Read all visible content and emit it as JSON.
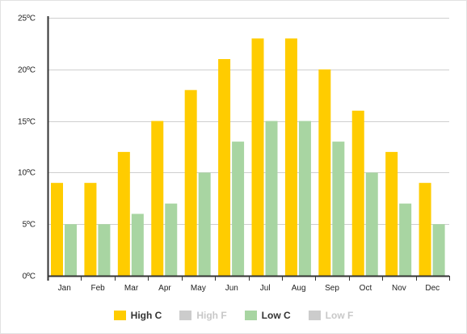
{
  "chart_data": {
    "type": "bar",
    "categories": [
      "Jan",
      "Feb",
      "Mar",
      "Apr",
      "May",
      "Jun",
      "Jul",
      "Aug",
      "Sep",
      "Oct",
      "Nov",
      "Dec"
    ],
    "series": [
      {
        "name": "High C",
        "values": [
          9,
          9,
          12,
          15,
          18,
          21,
          23,
          23,
          20,
          16,
          12,
          9
        ],
        "color": "#ffcc00",
        "visible": true
      },
      {
        "name": "Low C",
        "values": [
          5,
          5,
          6,
          7,
          10,
          13,
          15,
          15,
          13,
          10,
          7,
          5
        ],
        "color": "#a8d5a2",
        "visible": true
      }
    ],
    "ylim": [
      0,
      25
    ],
    "yticks": [
      0,
      5,
      10,
      15,
      20,
      25
    ],
    "ytick_labels": [
      "0ºC",
      "5ºC",
      "10ºC",
      "15ºC",
      "20ºC",
      "25ºC"
    ],
    "grid": true,
    "legend_position": "bottom"
  },
  "legend": [
    {
      "label": "High C",
      "color": "#ffcc00",
      "state": "on"
    },
    {
      "label": "High F",
      "color": "#cccccc",
      "state": "off"
    },
    {
      "label": "Low C",
      "color": "#a8d5a2",
      "state": "on"
    },
    {
      "label": "Low F",
      "color": "#cccccc",
      "state": "off"
    }
  ]
}
